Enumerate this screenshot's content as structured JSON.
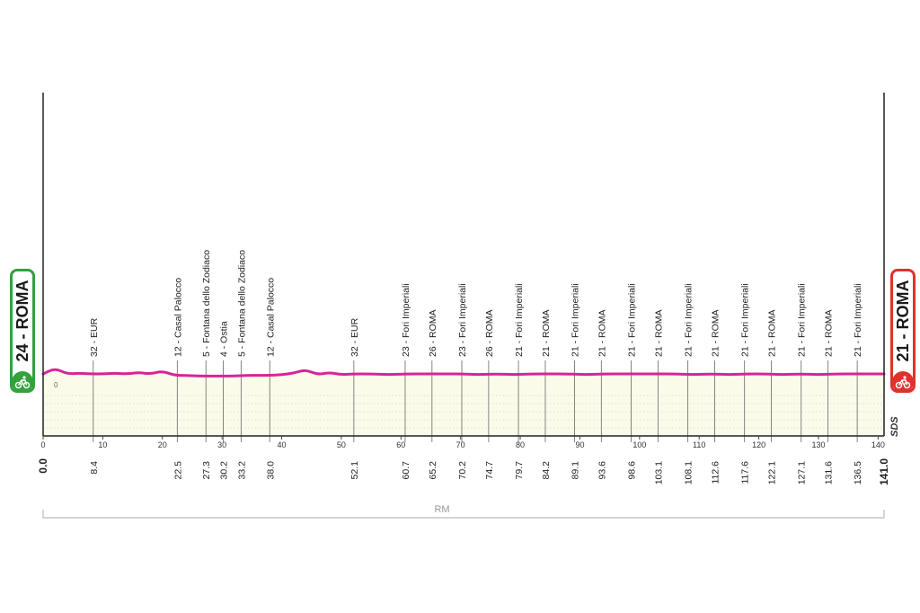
{
  "chart_data": {
    "type": "area",
    "x_ticks": [
      0,
      10,
      20,
      30,
      40,
      50,
      60,
      70,
      80,
      90,
      100,
      110,
      120,
      130,
      140
    ],
    "xlim": [
      0,
      141
    ],
    "elevation_label": "0",
    "profile": {
      "x": [
        0,
        2,
        4,
        6,
        8,
        10,
        12,
        14,
        16,
        18,
        20,
        22,
        24,
        26,
        28,
        30,
        32,
        34,
        36,
        38,
        40,
        42,
        44,
        46,
        48,
        50,
        52,
        55,
        58,
        61,
        64,
        67,
        70,
        73,
        76,
        79,
        82,
        85,
        88,
        91,
        94,
        97,
        100,
        103,
        106,
        109,
        112,
        115,
        118,
        121,
        124,
        127,
        130,
        133,
        136,
        139,
        141
      ],
      "y": [
        20,
        28,
        20,
        21,
        20,
        20,
        21,
        20,
        22,
        20,
        24,
        18,
        18,
        17,
        17,
        17,
        17,
        18,
        18,
        18,
        19,
        21,
        26,
        19,
        22,
        19,
        20,
        20,
        19,
        20,
        20,
        20,
        20,
        19,
        20,
        19,
        20,
        20,
        20,
        19,
        20,
        20,
        20,
        20,
        20,
        19,
        20,
        19,
        20,
        20,
        19,
        20,
        19,
        20,
        20,
        20,
        20
      ]
    },
    "waypoints": [
      {
        "km": "0.0",
        "label": "",
        "x": 0
      },
      {
        "km": "8.4",
        "label": "32 - EUR",
        "x": 8.4
      },
      {
        "km": "22.5",
        "label": "12 - Casal Palocco",
        "x": 22.5
      },
      {
        "km": "27.3",
        "label": "5 - Fontana dello Zodiaco",
        "x": 27.3
      },
      {
        "km": "30.2",
        "label": "4 - Ostia",
        "x": 30.2
      },
      {
        "km": "33.2",
        "label": "5 - Fontana dello Zodiaco",
        "x": 33.2
      },
      {
        "km": "38.0",
        "label": "12 - Casal Palocco",
        "x": 38.0
      },
      {
        "km": "52.1",
        "label": "32 - EUR",
        "x": 52.1
      },
      {
        "km": "60.7",
        "label": "23 - Fori Imperiali",
        "x": 60.7
      },
      {
        "km": "65.2",
        "label": "26 - ROMA",
        "x": 65.2
      },
      {
        "km": "70.2",
        "label": "23 - Fori Imperiali",
        "x": 70.2
      },
      {
        "km": "74.7",
        "label": "26 - ROMA",
        "x": 74.7
      },
      {
        "km": "79.7",
        "label": "21 - Fori Imperiali",
        "x": 79.7
      },
      {
        "km": "84.2",
        "label": "21 - ROMA",
        "x": 84.2
      },
      {
        "km": "89.1",
        "label": "21 - Fori Imperiali",
        "x": 89.1
      },
      {
        "km": "93.6",
        "label": "21 - ROMA",
        "x": 93.6
      },
      {
        "km": "98.6",
        "label": "21 - Fori Imperiali",
        "x": 98.6
      },
      {
        "km": "103.1",
        "label": "21 - ROMA",
        "x": 103.1
      },
      {
        "km": "108.1",
        "label": "21 - Fori Imperiali",
        "x": 108.1
      },
      {
        "km": "112.6",
        "label": "21 - ROMA",
        "x": 112.6
      },
      {
        "km": "117.6",
        "label": "21 - Fori Imperiali",
        "x": 117.6
      },
      {
        "km": "122.1",
        "label": "21 - ROMA",
        "x": 122.1
      },
      {
        "km": "127.1",
        "label": "21 - Fori Imperiali",
        "x": 127.1
      },
      {
        "km": "131.6",
        "label": "21 - ROMA",
        "x": 131.6
      },
      {
        "km": "136.5",
        "label": "21 - Fori Imperiali",
        "x": 136.5
      },
      {
        "km": "141.0",
        "label": "",
        "x": 141.0
      }
    ],
    "province_label": "RM",
    "colors": {
      "profile_line": "#d6249a",
      "fill": "#fbfbe9",
      "start": "#34a13d",
      "finish": "#e0322d",
      "axis": "#222222"
    }
  },
  "start": {
    "label": "24 - ROMA",
    "icon": "cyclist-start-icon"
  },
  "finish": {
    "label": "21 - ROMA",
    "icon": "cyclist-finish-icon"
  },
  "logo": {
    "text": "SDS"
  }
}
